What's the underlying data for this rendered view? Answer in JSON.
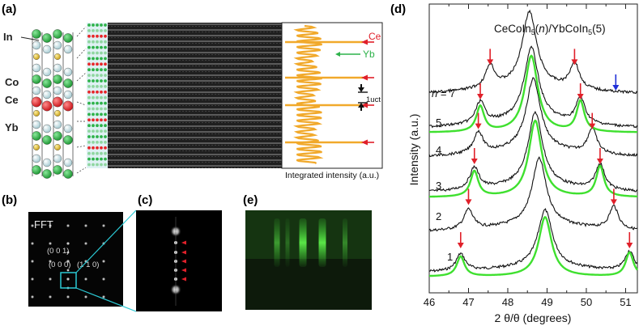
{
  "panel_labels": {
    "a": "(a)",
    "b": "(b)",
    "c": "(c)",
    "d": "(d)",
    "e": "(e)"
  },
  "atoms": {
    "in": "In",
    "co": "Co",
    "ce": "Ce",
    "yb": "Yb"
  },
  "intensity_profile": {
    "ce": "Ce",
    "yb": "Yb",
    "uct": "1uct",
    "caption": "Integrated intensity (a.u.)"
  },
  "fft": {
    "title": "FFT",
    "idx1": "(0 0 1)",
    "idx2": "(0 0 0)",
    "idx3": "(1 1 0)"
  },
  "colors": {
    "ce_atom": "#e8262a",
    "yb_atom": "#2db24a",
    "in_atom": "#d8ecef",
    "co_atom": "#e3c22a",
    "profile": "#f1a92b",
    "fit": "#3fe02f",
    "arrow_red": "#e0202a",
    "arrow_blue": "#2030d8",
    "rheed": "#2a8a22"
  },
  "chart_data": {
    "type": "line",
    "title": "CeCoIn5(n)/YbCoIn5(5)",
    "title_parts": {
      "a": "CeCoIn",
      "sub1": "5",
      "b": "(",
      "n": "n",
      "c": ")/YbCoIn",
      "sub2": "5",
      "d": "(5)"
    },
    "xlabel": "2 θ/θ (degrees)",
    "ylabel": "Intensity (a.u.)",
    "xlim": [
      46,
      51.3
    ],
    "xticks": [
      "46",
      "47",
      "48",
      "49",
      "50",
      "51"
    ],
    "n_label_prefix": "n",
    "n_label_eq": " = 7",
    "series": [
      {
        "name": "1",
        "main_peak": 48.95,
        "sat_left": 46.8,
        "sat_right": 51.1,
        "has_fit": true
      },
      {
        "name": "2",
        "main_peak": 48.8,
        "sat_left": 47.0,
        "sat_right": 50.7,
        "has_fit": false
      },
      {
        "name": "3",
        "main_peak": 48.7,
        "sat_left": 47.15,
        "sat_right": 50.35,
        "has_fit": true
      },
      {
        "name": "4",
        "main_peak": 48.65,
        "sat_left": 47.25,
        "sat_right": 50.15,
        "has_fit": false
      },
      {
        "name": "5",
        "main_peak": 48.6,
        "sat_left": 47.3,
        "sat_right": 49.85,
        "has_fit": true
      },
      {
        "name": "7",
        "main_peak": 48.55,
        "sat_left": 47.55,
        "sat_right": 49.7,
        "sat_far": 50.75,
        "has_fit": false
      }
    ]
  }
}
